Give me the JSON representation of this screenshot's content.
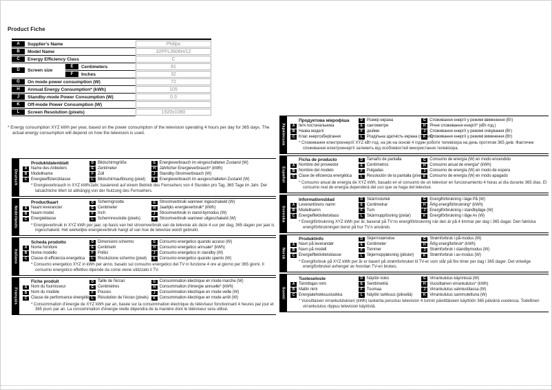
{
  "page": {
    "title": "Product Fiche"
  },
  "colors": {
    "page_bg": "#ffffff",
    "badge_bg": "#000000",
    "badge_text": "#ffffff",
    "value_text": "#8c8c8c",
    "rule": "#000000"
  },
  "table": {
    "rows": [
      {
        "badge": "A",
        "label": "Supplier's Name",
        "value": "Philips"
      },
      {
        "badge": "B",
        "label": "Model Name",
        "value": "32PFL3506H/12"
      },
      {
        "badge": "C",
        "label": "Energy Efficiency Class",
        "value": "C"
      },
      {
        "badge": "D",
        "label": "Screen size",
        "sub": [
          {
            "badge": "E",
            "label": "Centimeters",
            "value": "81"
          },
          {
            "badge": "F",
            "label": "Inches",
            "value": "32"
          }
        ]
      },
      {
        "badge": "G",
        "label": "On mode power consumption (W)",
        "value": "72"
      },
      {
        "badge": "H",
        "label": "Annual Energy Consumption* (kWh)",
        "value": "105"
      },
      {
        "badge": "J",
        "label": "Standby-mode Power Consumption (W)",
        "value": "0.3"
      },
      {
        "badge": "K",
        "label": "Off-mode Power Consumption (W)",
        "value": ""
      },
      {
        "badge": "L",
        "label": "Screen Resolution (pixels)",
        "value": "1920x1080"
      }
    ],
    "footnote": "* Energy consumption XYZ kWh per year, based on the power consumption of the television operating 4 hours per day for 365 days. The actual energy consumption will depend on how the television is used."
  },
  "sections": {
    "left": [
      {
        "language": "Deutsch",
        "title": "Produktdatenblatt",
        "col1": [
          {
            "badge": "A",
            "label": "Name des Anbieters"
          },
          {
            "badge": "B",
            "label": "Modellname"
          },
          {
            "badge": "C",
            "label": "Energieeffizienzklasse"
          }
        ],
        "col2": [
          {
            "badge": "D",
            "label": "Bildschirmgröße"
          },
          {
            "badge": "E",
            "label": "Zentimeter"
          },
          {
            "badge": "F",
            "label": "Zoll"
          },
          {
            "badge": "L",
            "label": "Bildschirmauflösung (pixel)"
          }
        ],
        "col3": [
          {
            "badge": "G",
            "label": "Energieverbrauch im eingeschalteten Zustand (W)"
          },
          {
            "badge": "H",
            "label": "Jährlicher Energieverbrauch* (kWh)"
          },
          {
            "badge": "J",
            "label": "Standby-Stromverbrauch (W)"
          },
          {
            "badge": "K",
            "label": "Energieverbrauch im ausgeschalteten Zustand (W)"
          }
        ],
        "footnote": "* Energieverbrauch in XYZ kWh/Jahr, basierend auf einem Betrieb des Fernsehers von 4 Stunden pro Tag, 365 Tage im Jahr. Der tatsächliche Wert ist abhängig von der Nutzung des Fernsehers."
      },
      {
        "language": "Nederlands",
        "title": "Productkaart",
        "col1": [
          {
            "badge": "A",
            "label": "Naam leverancier"
          },
          {
            "badge": "B",
            "label": "Naam model"
          },
          {
            "badge": "C",
            "label": "Energieklasse"
          }
        ],
        "col2": [
          {
            "badge": "D",
            "label": "Schermgrootte"
          },
          {
            "badge": "E",
            "label": "Centimeter"
          },
          {
            "badge": "F",
            "label": "Inch"
          },
          {
            "badge": "L",
            "label": "Schermresolutie (pixels)"
          }
        ],
        "col3": [
          {
            "badge": "G",
            "label": "Stroomverbruik wanneer ingeschakeld (W)"
          },
          {
            "badge": "H",
            "label": "Jaarlijks energieverbruik* (kWh)"
          },
          {
            "badge": "J",
            "label": "Stroomverbruik in stand-bymodus (W)"
          },
          {
            "badge": "K",
            "label": "Stroomverbruik wanneer uitgeschakeld (W)"
          }
        ],
        "footnote": "* Energieverbruik in XYZ kWh per jaar, op basis van het stroomverbruik van de televisie als deze 4 uur per dag, 365 dagen per jaar is ingeschakeld. Het werkelijke energieverbruik hangt af van hoe de televisie wordt gebruikt."
      },
      {
        "language": "Italiano",
        "title": "Scheda prodotto",
        "col1": [
          {
            "badge": "A",
            "label": "Nome fornitore"
          },
          {
            "badge": "B",
            "label": "Nome modello"
          },
          {
            "badge": "C",
            "label": "Classe di efficienza energetica"
          }
        ],
        "col2": [
          {
            "badge": "D",
            "label": "Dimensioni schermo"
          },
          {
            "badge": "E",
            "label": "Centimetri"
          },
          {
            "badge": "F",
            "label": "Pollici"
          },
          {
            "badge": "L",
            "label": "Risoluzione schermo (pixel)"
          }
        ],
        "col3": [
          {
            "badge": "G",
            "label": "Consumo energetico quando acceso (W)"
          },
          {
            "badge": "H",
            "label": "Consumo energetico annuale* (kWh)"
          },
          {
            "badge": "J",
            "label": "Consumo energetico in standby (W)"
          },
          {
            "badge": "K",
            "label": "Consumo energetico quando spento (W)"
          }
        ],
        "footnote": "* Consumo energetico XYZ in kWh per anno, basato sul consumo energetico del TV in funzione 4 ore al giorno per 365 giorni. Il consumo energetico effettivo dipende da come viene utilizzato il TV."
      },
      {
        "language": "Français",
        "title": "Fiche produit",
        "col1": [
          {
            "badge": "A",
            "label": "Nom du fournisseur"
          },
          {
            "badge": "B",
            "label": "Nom du modèle"
          },
          {
            "badge": "C",
            "label": "Classe de performance énergétique"
          }
        ],
        "col2": [
          {
            "badge": "D",
            "label": "Taille de l'écran"
          },
          {
            "badge": "E",
            "label": "Centimètres"
          },
          {
            "badge": "F",
            "label": "Pouces"
          },
          {
            "badge": "L",
            "label": "Résolution de l'écran (pixels)"
          }
        ],
        "col3": [
          {
            "badge": "G",
            "label": "Consommation électrique en mode marche (W)"
          },
          {
            "badge": "H",
            "label": "Consommation d'énergie annuelle* (kWh)"
          },
          {
            "badge": "J",
            "label": "Consommation électrique en mode veille (W)"
          },
          {
            "badge": "K",
            "label": "Consommation électrique en mode arrêt (W)"
          }
        ],
        "footnote": "* Consommation d'énergie de XYZ kWh par an, basée sur la consommation électrique du téléviseur fonctionnant 4 heures par jour et 365 jours par an. La consommation d'énergie réelle dépendra de la manière dont le téléviseur sera utilisé."
      }
    ],
    "right": [
      {
        "language": "Українська",
        "title": "Продуктова мікрофіша",
        "col1": [
          {
            "badge": "A",
            "label": "Ім'я постачальника"
          },
          {
            "badge": "B",
            "label": "Назва моделі"
          },
          {
            "badge": "C",
            "label": "Клас енергозберігання"
          }
        ],
        "col2": [
          {
            "badge": "D",
            "label": "Розмір екрана"
          },
          {
            "badge": "E",
            "label": "сантиметри"
          },
          {
            "badge": "F",
            "label": "дюйми"
          },
          {
            "badge": "L",
            "label": "Роздільна здатність екрана (пікселі)"
          }
        ],
        "col3": [
          {
            "badge": "G",
            "label": "Споживання енергії у режимі ввімкнення (Вт)"
          },
          {
            "badge": "H",
            "label": "Річне споживання енергії* (кВт-год.)"
          },
          {
            "badge": "J",
            "label": "Споживання енергії у режимі очікування (Вт)"
          },
          {
            "badge": "K",
            "label": "Споживання енергії у режимі вимкнення (Вт)"
          }
        ],
        "footnote": "* Споживання електроенергії XYZ кВт-год. на рік на основі 4 годин роботи телевізора на день протягом 365 днів. Фактичне споживання електроенергії залежить від особливостей використання телевізора."
      },
      {
        "language": "Español",
        "title": "Ficha de producto",
        "col1": [
          {
            "badge": "A",
            "label": "Nombre del proveedor"
          },
          {
            "badge": "B",
            "label": "Nombre del modelo"
          },
          {
            "badge": "C",
            "label": "Clase de eficiencia energética"
          }
        ],
        "col2": [
          {
            "badge": "D",
            "label": "Tamaño de pantalla"
          },
          {
            "badge": "E",
            "label": "Centímetros"
          },
          {
            "badge": "F",
            "label": "Pulgadas"
          },
          {
            "badge": "L",
            "label": "Resolución de la pantalla (píxeles)"
          }
        ],
        "col3": [
          {
            "badge": "G",
            "label": "Consumo de energía (W) en modo encendido"
          },
          {
            "badge": "H",
            "label": "Consumo anual de energía* (kWh)"
          },
          {
            "badge": "J",
            "label": "Consumo de energía (W) en modo de espera"
          },
          {
            "badge": "K",
            "label": "Consumo de energía (W) en modo apagado"
          }
        ],
        "footnote": "* Consumo anual de energía de XYZ kWh, basado en el consumo de un televisor en funcionamiento 4 horas al día durante 365 días. El consumo real de energía dependerá del uso que se haga del televisor."
      },
      {
        "language": "Svenska",
        "title": "Informationsblad",
        "col1": [
          {
            "badge": "A",
            "label": "Leverantörens namn"
          },
          {
            "badge": "B",
            "label": "Modellnamn"
          },
          {
            "badge": "C",
            "label": "Energieffektivitetsklass"
          }
        ],
        "col2": [
          {
            "badge": "D",
            "label": "Skärmstorlek"
          },
          {
            "badge": "E",
            "label": "Centimetrar"
          },
          {
            "badge": "F",
            "label": "Tum"
          },
          {
            "badge": "L",
            "label": "Skärmupplösning (pixlar)"
          }
        ],
        "col3": [
          {
            "badge": "G",
            "label": "Energiförbrukning i läge På (W)"
          },
          {
            "badge": "H",
            "label": "Årlig energiförbrukning* (kWh)"
          },
          {
            "badge": "J",
            "label": "Energiförbrukning i standbyläge (W)"
          },
          {
            "badge": "K",
            "label": "Energiförbrukning i läge Av (W)"
          }
        ],
        "footnote": "* Energiförbrukning XYZ kWh per år, baserat på TV:ns energiförbrukning när den är på 4 timmar per dag i 365 dagar. Den faktiska energiförbrukningen beror på hur TV:n används."
      },
      {
        "language": "Norsk",
        "title": "Produktinfo",
        "col1": [
          {
            "badge": "A",
            "label": "Navn på leverandør"
          },
          {
            "badge": "B",
            "label": "Navn på modell"
          },
          {
            "badge": "C",
            "label": "Energieffektivitetsklasse"
          }
        ],
        "col2": [
          {
            "badge": "D",
            "label": "Skjermstørrelse"
          },
          {
            "badge": "E",
            "label": "Centimeter"
          },
          {
            "badge": "F",
            "label": "Tommer"
          },
          {
            "badge": "L",
            "label": "Skjermoppløsning (piksler)"
          }
        ],
        "col3": [
          {
            "badge": "G",
            "label": "Strømforbruk i på-modus (W)"
          },
          {
            "badge": "H",
            "label": "Årlig energiforbruk* (kWh)"
          },
          {
            "badge": "J",
            "label": "Strømforbruk i standbymodus (W)"
          },
          {
            "badge": "K",
            "label": "Strømforbruk i av-modus (W)"
          }
        ],
        "footnote": "* Energiforbruk på XYZ kWh per år er basert på strømforbruket til TV-er som står på fire timer per dag i 365 dager. Det virkelige energiforbruket avhenger av hvordan TV-en brukes."
      },
      {
        "language": "Suomi",
        "title": "Tuoteseloste",
        "col1": [
          {
            "badge": "A",
            "label": "Toimittajan nimi"
          },
          {
            "badge": "B",
            "label": "Mallin nimi"
          },
          {
            "badge": "C",
            "label": "Energiatehokkuusluokka"
          }
        ],
        "col2": [
          {
            "badge": "D",
            "label": "Näytön koko"
          },
          {
            "badge": "E",
            "label": "Senttimetriä"
          },
          {
            "badge": "F",
            "label": "Tuumaa"
          },
          {
            "badge": "L",
            "label": "Näytön tarkkuus (pikseliä)"
          }
        ],
        "col3": [
          {
            "badge": "G",
            "label": "Virrankulutus käynnissä (W)"
          },
          {
            "badge": "H",
            "label": "Vuosittainen virrankulutus* (kWh)"
          },
          {
            "badge": "J",
            "label": "Virrankulutus valmiustilassa (W)"
          },
          {
            "badge": "K",
            "label": "Virrankulutus sammutettuna (W)"
          }
        ],
        "footnote": "* Vuosittaisen virrankulutuksen (kWh) laskenta perustuu television 4 tunnin päivittäiseen käyttöön 365 päivänä vuodessa. Todellinen virrankulutus riippuu television käytöstä."
      }
    ]
  }
}
